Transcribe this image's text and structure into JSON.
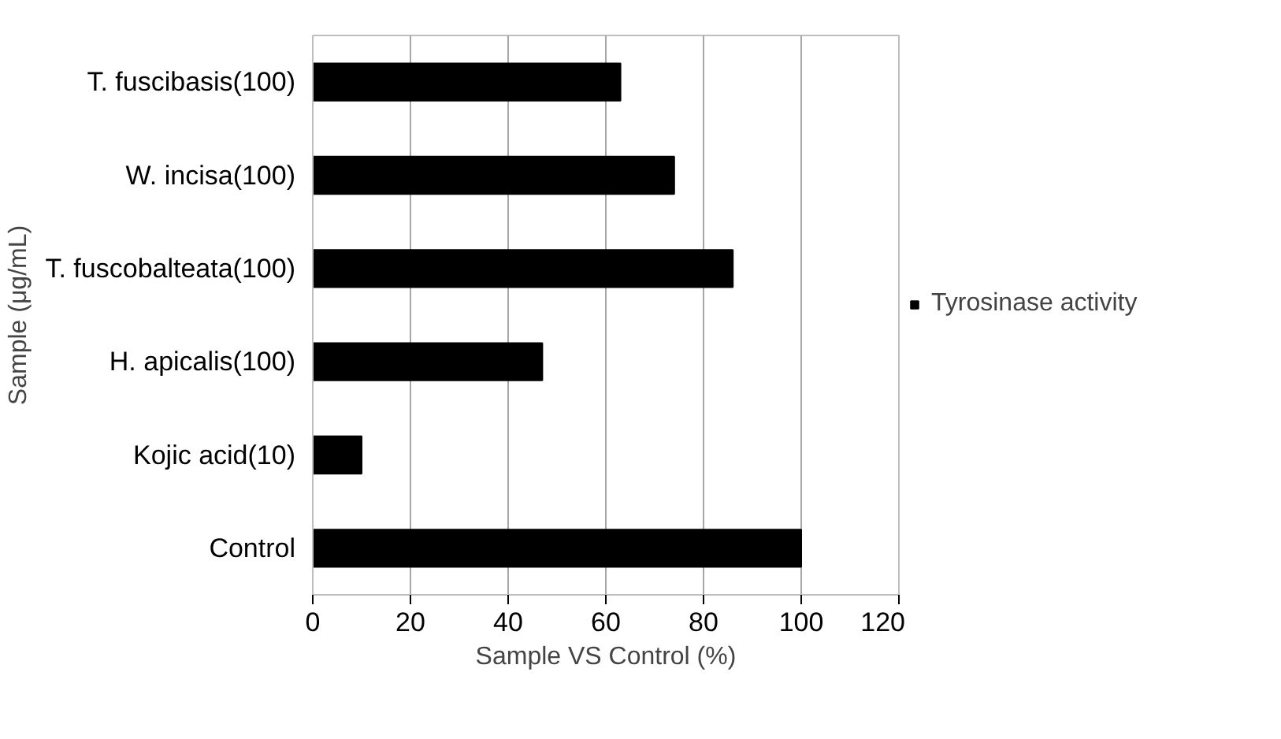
{
  "chart_data": {
    "type": "bar",
    "orientation": "horizontal",
    "xlabel": "Sample VS Control (%)",
    "ylabel": "Sample (μg/mL)",
    "categories": [
      "T. fuscibasis(100)",
      "W. incisa(100)",
      "T. fuscobalteata(100)",
      "H. apicalis(100)",
      "Kojic acid(10)",
      "Control"
    ],
    "series": [
      {
        "name": "Tyrosinase activity",
        "color": "#000000",
        "values": [
          63,
          74,
          86,
          47,
          10,
          100
        ]
      }
    ],
    "xlim": [
      0,
      120
    ],
    "xticks": [
      0,
      20,
      40,
      60,
      80,
      100,
      120
    ],
    "grid": "x",
    "legend": "right"
  }
}
